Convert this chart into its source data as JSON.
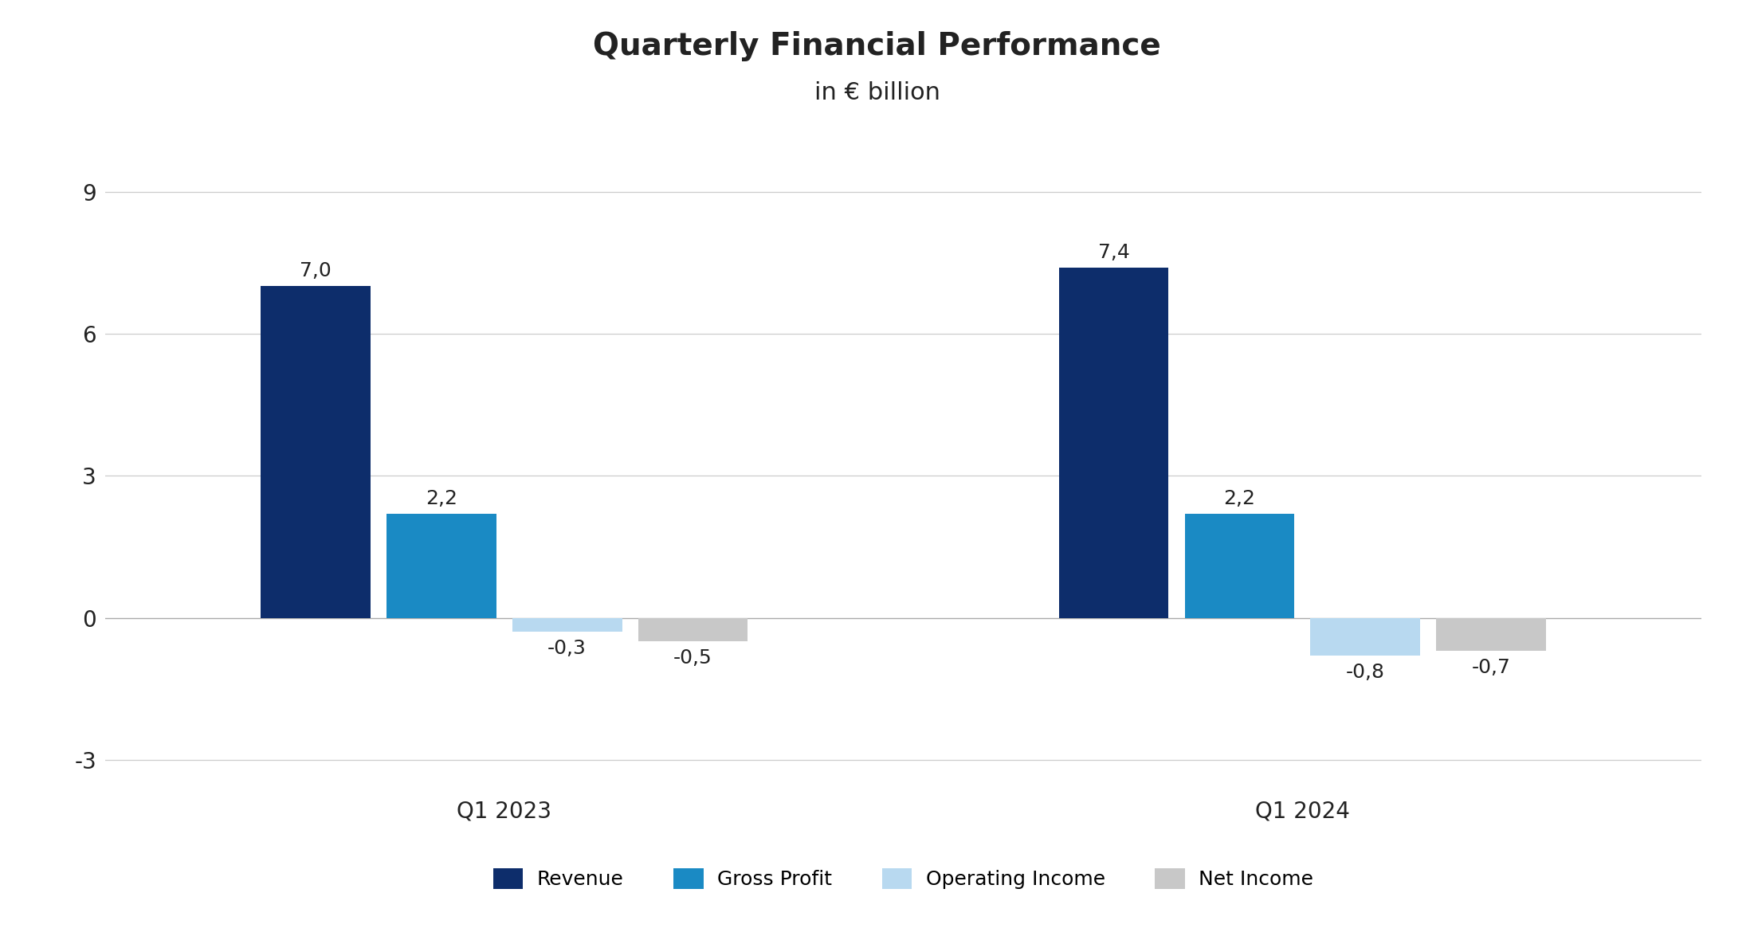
{
  "title": "Quarterly Financial Performance",
  "subtitle": "in € billion",
  "groups": [
    "Q1 2023",
    "Q1 2024"
  ],
  "categories": [
    "Revenue",
    "Gross Profit",
    "Operating Income",
    "Net Income"
  ],
  "values": {
    "Q1 2023": [
      7.0,
      2.2,
      -0.3,
      -0.5
    ],
    "Q1 2024": [
      7.4,
      2.2,
      -0.8,
      -0.7
    ]
  },
  "bar_colors": [
    "#0d2d6b",
    "#1a8ac4",
    "#b8d9f0",
    "#c8c8c8"
  ],
  "ylim": [
    -4.2,
    10.5
  ],
  "yticks": [
    -3,
    0,
    3,
    6,
    9
  ],
  "bar_width": 0.55,
  "group_centers": [
    2.0,
    6.0
  ],
  "title_fontsize": 28,
  "subtitle_fontsize": 22,
  "xlabel_fontsize": 20,
  "tick_fontsize": 20,
  "legend_fontsize": 18,
  "annotation_fontsize": 18,
  "background_color": "#ffffff",
  "grid_color": "#cccccc",
  "axis_color": "#aaaaaa",
  "text_color": "#222222"
}
